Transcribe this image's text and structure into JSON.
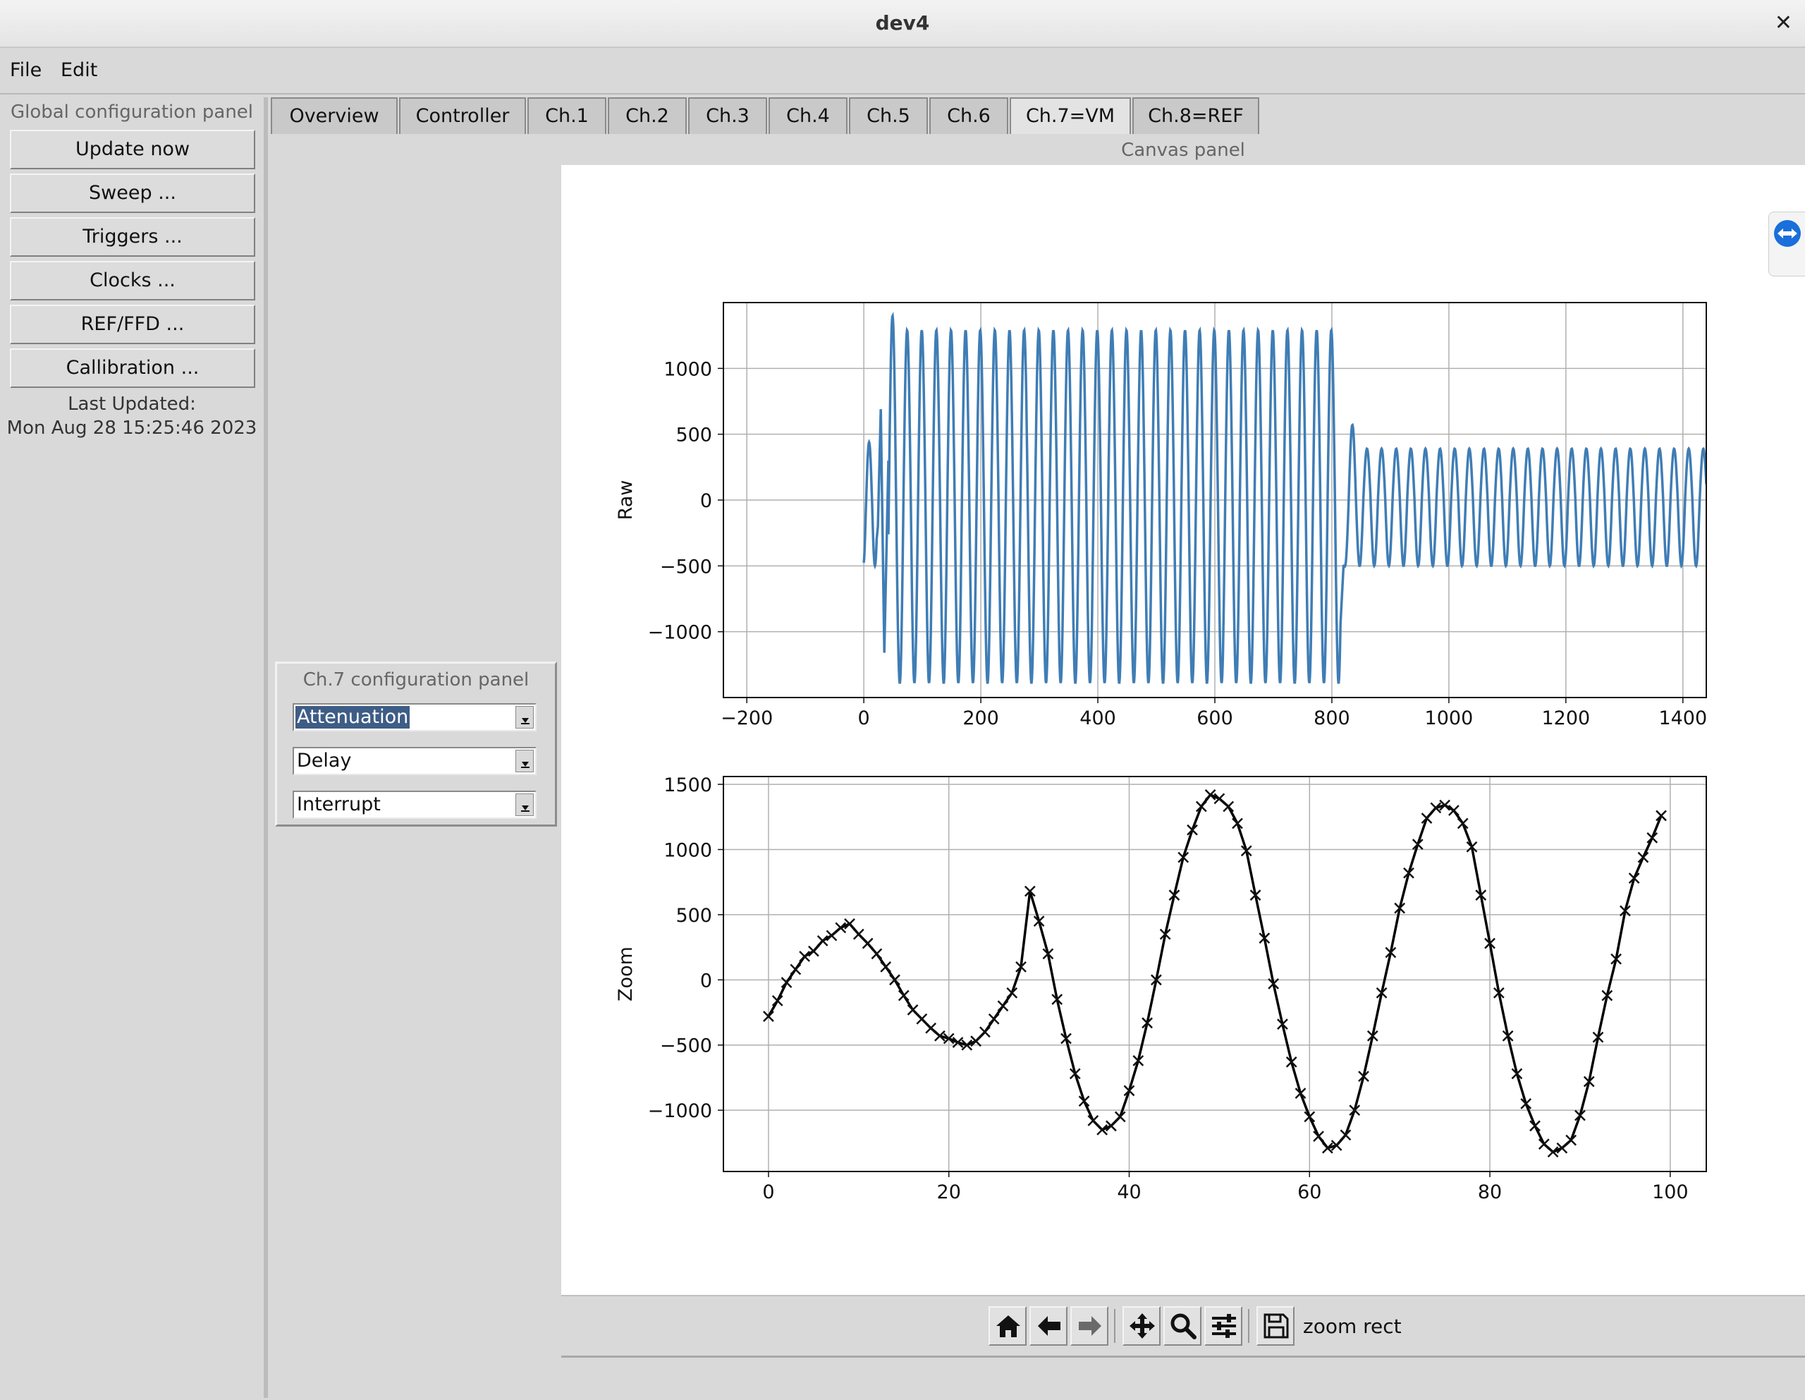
{
  "window": {
    "title": "dev4"
  },
  "menu": {
    "items": [
      "File",
      "Edit"
    ]
  },
  "global_panel": {
    "title": "Global configuration panel",
    "buttons": [
      "Update now",
      "Sweep ...",
      "Triggers ...",
      "Clocks ...",
      "REF/FFD ...",
      "Callibration ..."
    ],
    "last_updated_label": "Last Updated:",
    "last_updated_value": "Mon Aug 28 15:25:46 2023"
  },
  "tabs": {
    "items": [
      "Overview",
      "Controller",
      "Ch.1",
      "Ch.2",
      "Ch.3",
      "Ch.4",
      "Ch.5",
      "Ch.6",
      "Ch.7=VM",
      "Ch.8=REF"
    ],
    "active": "Ch.7=VM"
  },
  "ch7_panel": {
    "title": "Ch.7 configuration panel",
    "dropdowns": [
      "Attenuation",
      "Delay",
      "Interrupt"
    ]
  },
  "canvas": {
    "title": "Canvas panel"
  },
  "toolbar": {
    "icons": [
      "home-icon",
      "back-arrow-icon",
      "forward-arrow-icon",
      "pan-icon",
      "zoom-icon",
      "subplots-icon",
      "save-icon"
    ],
    "mode_text": "zoom rect"
  },
  "colors": {
    "raw_line": "#3f7db5",
    "zoom_line": "#000000",
    "grid": "#b0b0b0"
  },
  "chart_data": [
    {
      "type": "line",
      "ylabel": "Raw",
      "xlabel": "",
      "xlim": [
        -240,
        1440
      ],
      "ylim": [
        -1500,
        1500
      ],
      "xticks": [
        -200,
        0,
        200,
        400,
        600,
        800,
        1000,
        1200,
        1400
      ],
      "yticks": [
        -1000,
        -500,
        0,
        500,
        1000
      ],
      "xtick_labels": [
        "−200",
        "0",
        "200",
        "400",
        "600",
        "800",
        "1000",
        "1200",
        "1400"
      ],
      "ytick_labels": [
        "−1000",
        "−500",
        "0",
        "500",
        "1000"
      ],
      "grid": true,
      "series": [
        {
          "segments": [
            {
              "x_start": 0,
              "x_end": 30,
              "period": 20,
              "amp_max": 440,
              "amp_min": -500,
              "peak_x": 9,
              "first_y": -300
            },
            {
              "x_start": 30,
              "x_end": 40,
              "peak_x": 29,
              "peak_y": 690,
              "trough_y": -1160
            },
            {
              "x_start": 40,
              "x_end": 815,
              "period": 25,
              "amp_max": 1290,
              "amp_min": -1390,
              "first_peak_x": 49,
              "first_peak_y": 1400
            },
            {
              "x_start": 815,
              "x_end": 1440,
              "period": 25,
              "amp_max": 390,
              "amp_min": -500,
              "first_peak_x": 835,
              "first_peak_y": 570
            }
          ]
        }
      ]
    },
    {
      "type": "line",
      "ylabel": "Zoom",
      "xlabel": "",
      "xlim": [
        -5,
        104
      ],
      "ylim": [
        -1470,
        1560
      ],
      "xticks": [
        0,
        20,
        40,
        60,
        80,
        100
      ],
      "yticks": [
        -1000,
        -500,
        0,
        500,
        1000,
        1500
      ],
      "xtick_labels": [
        "0",
        "20",
        "40",
        "60",
        "80",
        "100"
      ],
      "ytick_labels": [
        "−1000",
        "−500",
        "0",
        "500",
        "1000",
        "1500"
      ],
      "grid": true,
      "marker": "x",
      "series": [
        {
          "x": [
            0,
            1,
            2,
            3,
            4,
            5,
            6,
            7,
            8,
            9,
            10,
            11,
            12,
            13,
            14,
            15,
            16,
            17,
            18,
            19,
            20,
            21,
            22,
            23,
            24,
            25,
            26,
            27,
            28,
            29,
            30,
            31,
            32,
            33,
            34,
            35,
            36,
            37,
            38,
            39,
            40,
            41,
            42,
            43,
            44,
            45,
            46,
            47,
            48,
            49,
            50,
            51,
            52,
            53,
            54,
            55,
            56,
            57,
            58,
            59,
            60,
            61,
            62,
            63,
            64,
            65,
            66,
            67,
            68,
            69,
            70,
            71,
            72,
            73,
            74,
            75,
            76,
            77,
            78,
            79,
            80,
            81,
            82,
            83,
            84,
            85,
            86,
            87,
            88,
            89,
            90,
            91,
            92,
            93,
            94,
            95,
            96,
            97,
            98,
            99
          ],
          "y": [
            -280,
            -160,
            -20,
            80,
            180,
            220,
            300,
            340,
            400,
            430,
            350,
            280,
            200,
            100,
            0,
            -120,
            -230,
            -300,
            -370,
            -430,
            -450,
            -480,
            -500,
            -470,
            -400,
            -300,
            -200,
            -100,
            100,
            680,
            450,
            200,
            -150,
            -450,
            -720,
            -930,
            -1080,
            -1150,
            -1120,
            -1050,
            -850,
            -620,
            -330,
            0,
            350,
            650,
            940,
            1150,
            1330,
            1420,
            1390,
            1330,
            1200,
            990,
            650,
            320,
            -30,
            -340,
            -630,
            -870,
            -1050,
            -1200,
            -1290,
            -1270,
            -1190,
            -1000,
            -740,
            -430,
            -100,
            210,
            550,
            820,
            1040,
            1240,
            1320,
            1340,
            1300,
            1200,
            1020,
            650,
            280,
            -100,
            -430,
            -720,
            -950,
            -1120,
            -1260,
            -1320,
            -1290,
            -1230,
            -1040,
            -780,
            -440,
            -120,
            160,
            530,
            780,
            940,
            1090,
            1260
          ]
        }
      ]
    }
  ]
}
